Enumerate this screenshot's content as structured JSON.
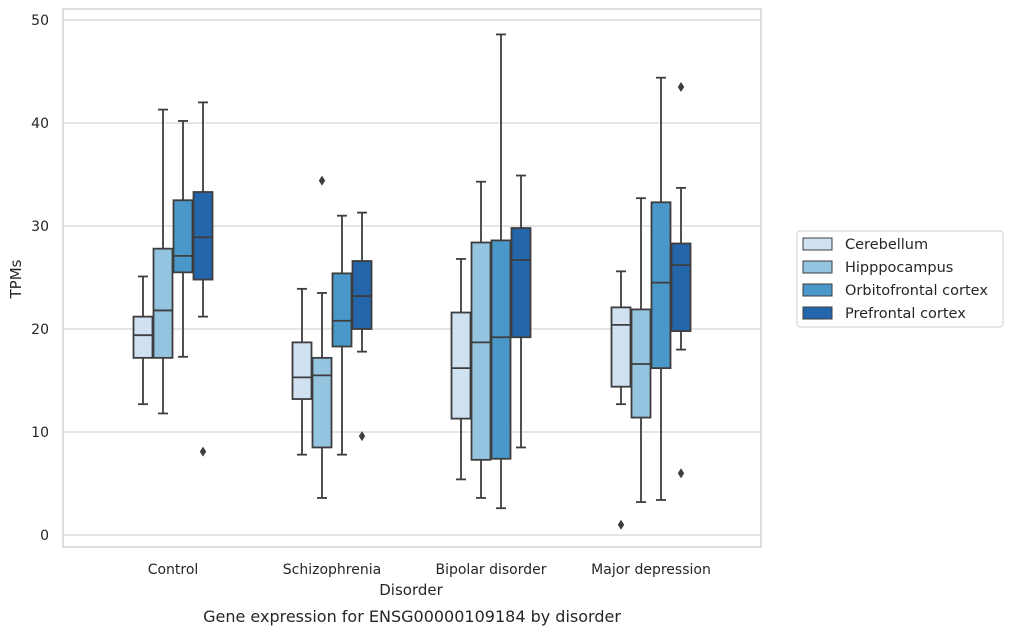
{
  "chart_data": {
    "type": "box",
    "xlabel": "Disorder",
    "ylabel": "TPMs",
    "caption": "Gene expression for ENSG00000109184 by disorder",
    "ylim": [
      -1.2,
      51.2
    ],
    "yticks": [
      0,
      10,
      20,
      30,
      40,
      50
    ],
    "grid": "horizontal",
    "legend_placement": "right",
    "categories": [
      "Control",
      "Schizophrenia",
      "Bipolar disorder",
      "Major depression"
    ],
    "series": [
      {
        "name": "Cerebellum",
        "color": "#d0e1f2",
        "boxes": [
          {
            "whislo": 12.7,
            "q1": 17.2,
            "med": 19.4,
            "q3": 21.2,
            "whishi": 25.1,
            "fliers": []
          },
          {
            "whislo": 7.8,
            "q1": 13.2,
            "med": 15.3,
            "q3": 18.7,
            "whishi": 23.9,
            "fliers": []
          },
          {
            "whislo": 5.4,
            "q1": 11.3,
            "med": 16.2,
            "q3": 21.6,
            "whishi": 26.8,
            "fliers": []
          },
          {
            "whislo": 12.7,
            "q1": 14.4,
            "med": 20.4,
            "q3": 22.1,
            "whishi": 25.6,
            "fliers": [
              1.0
            ]
          }
        ]
      },
      {
        "name": "Hipppocampus",
        "color": "#94c4df",
        "boxes": [
          {
            "whislo": 11.8,
            "q1": 17.2,
            "med": 21.8,
            "q3": 27.8,
            "whishi": 41.3,
            "fliers": []
          },
          {
            "whislo": 3.6,
            "q1": 8.5,
            "med": 15.5,
            "q3": 17.2,
            "whishi": 23.5,
            "fliers": [
              34.4
            ]
          },
          {
            "whislo": 3.6,
            "q1": 7.3,
            "med": 18.7,
            "q3": 28.4,
            "whishi": 34.3,
            "fliers": []
          },
          {
            "whislo": 3.2,
            "q1": 11.4,
            "med": 16.6,
            "q3": 21.9,
            "whishi": 32.7,
            "fliers": []
          }
        ]
      },
      {
        "name": "Orbitofrontal cortex",
        "color": "#4a98c9",
        "boxes": [
          {
            "whislo": 17.3,
            "q1": 25.5,
            "med": 27.1,
            "q3": 32.5,
            "whishi": 40.2,
            "fliers": []
          },
          {
            "whislo": 7.8,
            "q1": 18.3,
            "med": 20.8,
            "q3": 25.4,
            "whishi": 31.0,
            "fliers": []
          },
          {
            "whislo": 2.6,
            "q1": 7.4,
            "med": 19.2,
            "q3": 28.6,
            "whishi": 48.6,
            "fliers": []
          },
          {
            "whislo": 3.4,
            "q1": 16.2,
            "med": 24.5,
            "q3": 32.3,
            "whishi": 44.4,
            "fliers": []
          }
        ]
      },
      {
        "name": "Prefrontal cortex",
        "color": "#2366ac",
        "boxes": [
          {
            "whislo": 21.2,
            "q1": 24.8,
            "med": 28.9,
            "q3": 33.3,
            "whishi": 42.0,
            "fliers": [
              8.1
            ]
          },
          {
            "whislo": 17.8,
            "q1": 20.0,
            "med": 23.2,
            "q3": 26.6,
            "whishi": 31.3,
            "fliers": [
              9.6
            ]
          },
          {
            "whislo": 8.5,
            "q1": 19.2,
            "med": 26.7,
            "q3": 29.8,
            "whishi": 34.9,
            "fliers": []
          },
          {
            "whislo": 18.0,
            "q1": 19.8,
            "med": 26.2,
            "q3": 28.3,
            "whishi": 33.7,
            "fliers": [
              6.0,
              43.5
            ]
          }
        ]
      }
    ]
  }
}
